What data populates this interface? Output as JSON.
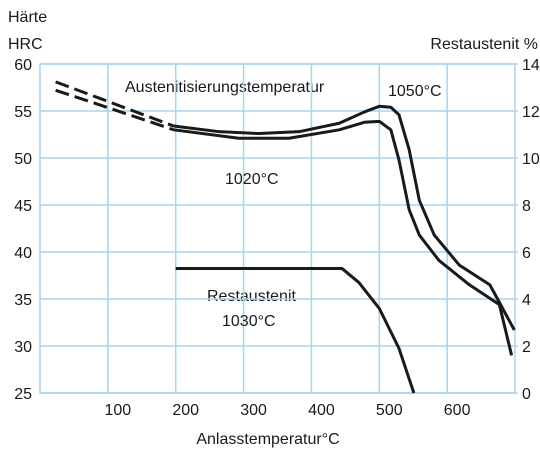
{
  "chart_data": {
    "type": "line",
    "y_label_lines": [
      "Härte",
      "HRC"
    ],
    "y2_label": "Restaustenit %",
    "x_label": "Anlasstemperatur°C",
    "annotations": [
      "Austenitisierungstemperatur",
      "Restaustenit"
    ],
    "xlim": [
      0,
      700
    ],
    "xticks": [
      100,
      200,
      300,
      400,
      500,
      600
    ],
    "ylim": [
      25,
      60
    ],
    "yticks": [
      25,
      30,
      35,
      40,
      45,
      50,
      55,
      60
    ],
    "y2lim": [
      0,
      14
    ],
    "y2ticks": [
      0,
      2,
      4,
      6,
      8,
      10,
      12,
      14
    ],
    "grid": true,
    "grid_color": "#a8d4f0",
    "series": [
      {
        "name": "1050°C",
        "color": "#1a1a1a",
        "style": "solid",
        "x": [
          197,
          264,
          323,
          382,
          441,
          478,
          500,
          517,
          529,
          544,
          559,
          581,
          618,
          663,
          699
        ],
        "values": [
          53.4,
          52.8,
          52.6,
          52.8,
          53.7,
          54.9,
          55.5,
          55.4,
          54.6,
          50.9,
          45.5,
          41.8,
          38.6,
          36.5,
          31.7
        ]
      },
      {
        "name": "1020°C",
        "color": "#1a1a1a",
        "style": "solid",
        "x": [
          197,
          293,
          367,
          441,
          478,
          500,
          517,
          529,
          544,
          559,
          588,
          633,
          677,
          695
        ],
        "values": [
          53,
          52.1,
          52.1,
          53,
          53.8,
          53.9,
          53,
          49.8,
          44.5,
          41.8,
          39.1,
          36.5,
          34.4,
          29
        ]
      },
      {
        "name": "1030°C",
        "color": "#1a1a1a",
        "style": "solid",
        "axis": "y2",
        "x": [
          200,
          445,
          470,
          500,
          529,
          551
        ],
        "values": [
          5.3,
          5.3,
          4.7,
          3.6,
          1.9,
          0
        ]
      },
      {
        "color": "#1a1a1a",
        "style": "dashed",
        "x": [
          23,
          86,
          197
        ],
        "values": [
          58.1,
          56.4,
          53.4
        ]
      },
      {
        "color": "#1a1a1a",
        "style": "dashed",
        "x": [
          23,
          86,
          197
        ],
        "values": [
          57.2,
          55.7,
          53
        ]
      }
    ]
  }
}
